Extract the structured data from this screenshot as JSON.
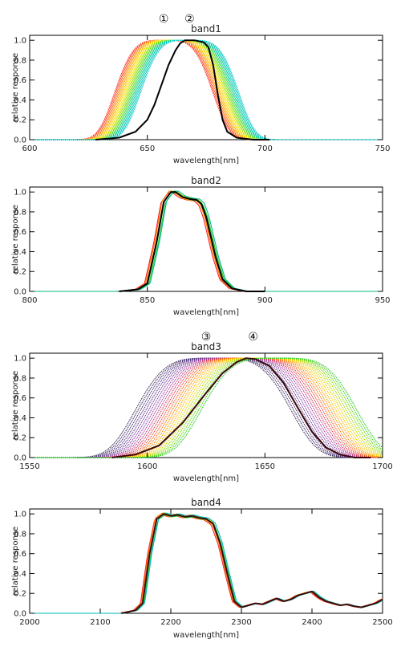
{
  "chart_data": [
    {
      "type": "line",
      "title": "band1",
      "xlabel": "wavelength[nm]",
      "ylabel": "relative response",
      "xlim": [
        600,
        750
      ],
      "ylim": [
        0,
        1.05
      ],
      "xticks": [
        "600",
        "650",
        "700",
        "750"
      ],
      "yticks": [
        "0.0",
        "0.2",
        "0.4",
        "0.6",
        "0.8",
        "1.0"
      ],
      "markers": [
        {
          "label": "①",
          "x": 657
        },
        {
          "label": "②",
          "x": 668
        }
      ],
      "family": {
        "count": 26,
        "colors": [
          "#ff2020",
          "#ff9900",
          "#ffe400",
          "#66dd00",
          "#00cc99",
          "#00c8d0"
        ],
        "profile": "bell",
        "center_from": 657,
        "center_to": 668,
        "half_width": 17
      },
      "highlight": {
        "color": "#000000",
        "x": [
          628,
          638,
          645,
          650,
          653,
          656,
          659,
          662,
          664,
          666,
          670,
          674,
          676,
          678,
          680,
          682,
          684,
          688,
          695,
          702
        ],
        "y": [
          0.0,
          0.02,
          0.08,
          0.2,
          0.35,
          0.55,
          0.75,
          0.9,
          0.97,
          1.0,
          1.0,
          0.98,
          0.93,
          0.75,
          0.45,
          0.2,
          0.08,
          0.02,
          0.0,
          0.0
        ]
      }
    },
    {
      "type": "line",
      "title": "band2",
      "xlabel": "wavelength[nm]",
      "ylabel": "relative response",
      "xlim": [
        800,
        950
      ],
      "ylim": [
        0,
        1.05
      ],
      "xticks": [
        "800",
        "850",
        "900",
        "950"
      ],
      "yticks": [
        "0.0",
        "0.2",
        "0.4",
        "0.6",
        "0.8",
        "1.0"
      ],
      "markers": [],
      "family": {
        "count": 6,
        "colors": [
          "#ff2020",
          "#ff8800",
          "#ffcc00",
          "#22cc22",
          "#00bb88"
        ],
        "profile": "shifted",
        "shift_from": -1.2,
        "shift_to": 1.2
      },
      "highlight": {
        "color": "#000000",
        "x": [
          838,
          846,
          850,
          854,
          857,
          860,
          862,
          865,
          868,
          871,
          873,
          875,
          877,
          879,
          882,
          886,
          892,
          900
        ],
        "y": [
          0.0,
          0.02,
          0.08,
          0.5,
          0.9,
          1.0,
          1.0,
          0.95,
          0.93,
          0.92,
          0.88,
          0.75,
          0.55,
          0.35,
          0.12,
          0.03,
          0.0,
          0.0
        ]
      }
    },
    {
      "type": "line",
      "title": "band3",
      "xlabel": "wavelength[nm]",
      "ylabel": "relative response",
      "xlim": [
        1550,
        1700
      ],
      "ylim": [
        0,
        1.05
      ],
      "xticks": [
        "1550",
        "1600",
        "1650",
        "1700"
      ],
      "yticks": [
        "0.0",
        "0.2",
        "0.4",
        "0.6",
        "0.8",
        "1.0"
      ],
      "markers": [
        {
          "label": "③",
          "x": 1625
        },
        {
          "label": "④",
          "x": 1645
        }
      ],
      "family": {
        "count": 26,
        "colors": [
          "#3a2a5a",
          "#5a3a8a",
          "#9944aa",
          "#dd3355",
          "#ff7700",
          "#ffcc00",
          "#99dd00",
          "#22cc22"
        ],
        "profile": "bell",
        "center_from": 1628,
        "center_to": 1656,
        "half_width": 27
      },
      "highlight": {
        "color": "#3a0808",
        "x": [
          1585,
          1595,
          1605,
          1615,
          1625,
          1632,
          1638,
          1642,
          1646,
          1652,
          1658,
          1664,
          1670,
          1676,
          1682,
          1688,
          1695
        ],
        "y": [
          0.0,
          0.03,
          0.12,
          0.35,
          0.65,
          0.85,
          0.96,
          1.0,
          0.99,
          0.92,
          0.75,
          0.5,
          0.26,
          0.1,
          0.03,
          0.0,
          0.0
        ]
      }
    },
    {
      "type": "line",
      "title": "band4",
      "xlabel": "wavelength[nm]",
      "ylabel": "relative response",
      "xlim": [
        2000,
        2500
      ],
      "ylim": [
        0,
        1.05
      ],
      "xticks": [
        "2000",
        "2100",
        "2200",
        "2300",
        "2400",
        "2500"
      ],
      "yticks": [
        "0.0",
        "0.2",
        "0.4",
        "0.6",
        "0.8",
        "1.0"
      ],
      "markers": [],
      "family": {
        "count": 6,
        "colors": [
          "#ff2020",
          "#ff8800",
          "#ffcc00",
          "#22cc22",
          "#00bbbb"
        ],
        "profile": "shifted",
        "shift_from": -3,
        "shift_to": 3
      },
      "highlight": {
        "color": "#3a0a0a",
        "x": [
          2130,
          2150,
          2160,
          2170,
          2180,
          2190,
          2200,
          2210,
          2220,
          2230,
          2240,
          2250,
          2260,
          2270,
          2280,
          2290,
          2300,
          2310,
          2320,
          2330,
          2340,
          2350,
          2360,
          2370,
          2380,
          2390,
          2400,
          2410,
          2420,
          2430,
          2440,
          2450,
          2460,
          2470,
          2480,
          2490,
          2500
        ],
        "y": [
          0.0,
          0.03,
          0.1,
          0.6,
          0.95,
          1.0,
          0.98,
          0.99,
          0.97,
          0.98,
          0.96,
          0.95,
          0.9,
          0.7,
          0.4,
          0.12,
          0.06,
          0.08,
          0.1,
          0.09,
          0.12,
          0.15,
          0.12,
          0.14,
          0.18,
          0.2,
          0.22,
          0.16,
          0.12,
          0.1,
          0.08,
          0.09,
          0.07,
          0.06,
          0.08,
          0.1,
          0.14
        ]
      }
    }
  ]
}
